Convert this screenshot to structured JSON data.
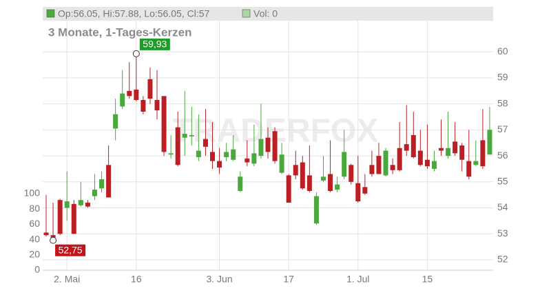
{
  "chart_data": {
    "type": "candlestick",
    "title": "3 Monate, 1-Tages-Kerzen",
    "legend": [
      {
        "label": "Op:56.05, Hi:57.88, Lo:56.05, Cl:57",
        "color": "#4aa83c"
      },
      {
        "label": "Vol: 0",
        "color": "#a8d8a0"
      }
    ],
    "watermark": "TRADERFOX",
    "categories": [
      null,
      null,
      null,
      "2. Mai",
      null,
      null,
      null,
      null,
      null,
      null,
      null,
      null,
      null,
      "16",
      null,
      null,
      null,
      null,
      null,
      null,
      null,
      null,
      null,
      null,
      null,
      "3. Jun",
      null,
      null,
      null,
      null,
      null,
      null,
      null,
      null,
      null,
      "17",
      null,
      null,
      null,
      null,
      null,
      null,
      null,
      null,
      null,
      "1. Jul",
      null,
      null,
      null,
      null,
      null,
      null,
      null,
      null,
      null,
      "15",
      null,
      null,
      null,
      null,
      null,
      null,
      null,
      null,
      null
    ],
    "open": [
      53.05,
      52.95,
      54.3,
      54.0,
      54.15,
      54.1,
      54.2,
      54.45,
      54.75,
      55.65,
      57.05,
      57.9,
      58.5,
      58.55,
      58.15,
      58.95,
      58.15,
      58.3,
      56.05,
      57.1,
      56.7,
      56.75,
      55.95,
      56.65,
      56.15,
      55.8,
      55.95,
      55.85,
      54.65,
      55.9,
      55.7,
      56.0,
      56.7,
      56.95,
      55.35,
      55.25,
      55.65,
      55.75,
      55.25,
      53.4,
      55.05,
      55.3,
      54.7,
      55.2,
      55.65,
      54.95,
      54.8,
      55.65,
      56.0,
      55.25,
      55.65,
      56.3,
      56.45,
      56.8,
      56.2,
      55.85,
      55.5,
      56.3,
      56.0,
      56.55,
      56.4,
      55.8,
      55.65,
      56.6,
      56.05
    ],
    "high": [
      54.5,
      54.2,
      54.35,
      55.4,
      54.3,
      55.0,
      54.3,
      55.3,
      55.4,
      56.4,
      58.2,
      59.3,
      59.6,
      59.93,
      58.3,
      59.4,
      59.3,
      58.3,
      56.8,
      57.7,
      58.5,
      57.9,
      57.6,
      57.8,
      57.3,
      56.3,
      56.5,
      56.8,
      55.4,
      56.6,
      57.2,
      58.0,
      57.1,
      57.1,
      56.5,
      55.3,
      56.2,
      56.0,
      56.4,
      54.6,
      56.0,
      56.6,
      55.2,
      57.0,
      55.7,
      56.0,
      55.3,
      56.2,
      56.5,
      56.3,
      55.9,
      57.3,
      57.95,
      57.7,
      57.0,
      57.2,
      56.2,
      57.4,
      57.7,
      57.3,
      56.5,
      57.0,
      56.6,
      57.8,
      57.88
    ],
    "low": [
      52.9,
      52.75,
      52.95,
      53.5,
      53.0,
      54.05,
      54.0,
      54.3,
      54.6,
      54.4,
      56.6,
      57.8,
      58.2,
      58.1,
      57.6,
      58.0,
      57.4,
      56.0,
      55.9,
      55.6,
      56.0,
      56.4,
      55.8,
      56.0,
      55.5,
      55.3,
      55.8,
      55.8,
      54.6,
      55.6,
      55.6,
      55.9,
      55.9,
      55.7,
      55.3,
      54.2,
      55.1,
      54.7,
      54.6,
      53.35,
      55.0,
      54.6,
      54.6,
      55.1,
      54.9,
      54.2,
      54.5,
      55.2,
      55.3,
      55.2,
      55.3,
      55.4,
      56.0,
      55.9,
      55.6,
      55.5,
      55.4,
      56.0,
      55.9,
      56.0,
      55.4,
      55.1,
      55.6,
      55.5,
      56.05
    ],
    "close": [
      52.95,
      52.85,
      53.0,
      54.25,
      53.0,
      54.3,
      54.05,
      54.7,
      55.1,
      54.4,
      57.6,
      58.4,
      58.3,
      58.15,
      57.7,
      58.2,
      57.75,
      56.15,
      56.1,
      55.65,
      56.85,
      56.8,
      56.2,
      56.35,
      55.8,
      55.55,
      56.15,
      56.25,
      55.2,
      55.75,
      56.1,
      56.65,
      56.15,
      55.8,
      56.05,
      54.2,
      55.25,
      54.75,
      54.65,
      54.45,
      55.2,
      54.65,
      54.9,
      56.15,
      55.0,
      54.25,
      54.55,
      55.3,
      55.3,
      56.2,
      55.45,
      55.45,
      56.2,
      55.95,
      55.65,
      55.6,
      55.8,
      56.2,
      56.3,
      56.1,
      55.85,
      55.2,
      55.8,
      55.6,
      57.0
    ],
    "up_color": "#4aa83c",
    "down_color": "#bb1f24",
    "ylim": [
      51.6,
      61.2
    ],
    "yticks": [
      52,
      53,
      54,
      55,
      56,
      57,
      58,
      59,
      60
    ],
    "volume_lim": [
      0,
      100
    ],
    "volume_ticks": [
      0,
      20,
      40,
      60,
      80,
      100
    ],
    "annotations": [
      {
        "value": 59.93,
        "label": "59,93",
        "color": "#1e9b28"
      },
      {
        "value": 52.75,
        "label": "52,75",
        "color": "#c4141a"
      }
    ],
    "grid": true
  }
}
